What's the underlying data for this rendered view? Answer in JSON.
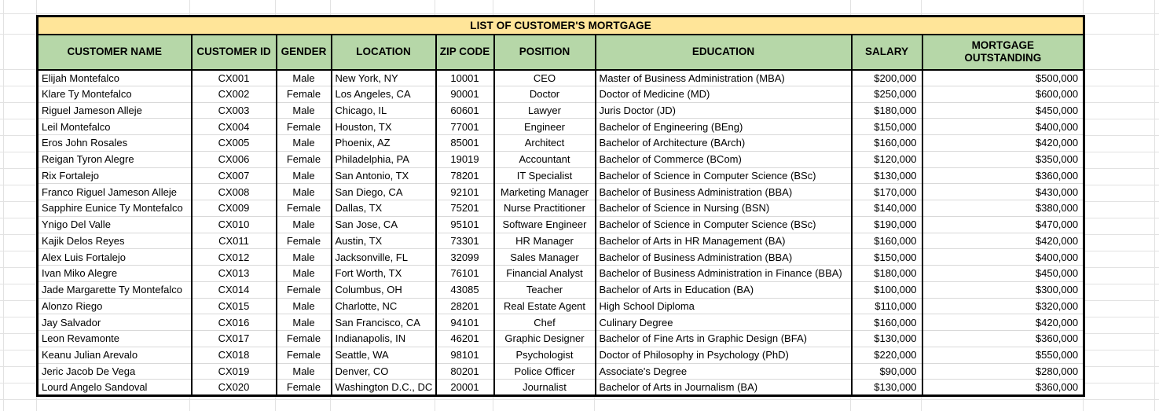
{
  "title": "LIST OF CUSTOMER'S MORTGAGE",
  "colors": {
    "title_bg": "#ffe599",
    "header_bg": "#b6d7a8",
    "table_border": "#000000",
    "gridline": "#e2e2e2",
    "cell_bg": "#ffffff",
    "text": "#000000"
  },
  "columns": [
    {
      "key": "customer_name",
      "label": "CUSTOMER NAME",
      "align": "left"
    },
    {
      "key": "customer_id",
      "label": "CUSTOMER ID",
      "align": "center"
    },
    {
      "key": "gender",
      "label": "GENDER",
      "align": "center"
    },
    {
      "key": "location",
      "label": "LOCATION",
      "align": "left"
    },
    {
      "key": "zip_code",
      "label": "ZIP CODE",
      "align": "center"
    },
    {
      "key": "position",
      "label": "POSITION",
      "align": "center"
    },
    {
      "key": "education",
      "label": "EDUCATION",
      "align": "left"
    },
    {
      "key": "salary",
      "label": "SALARY",
      "align": "right"
    },
    {
      "key": "mortgage_outstanding",
      "label": "MORTGAGE OUTSTANDING",
      "align": "right"
    }
  ],
  "rows": [
    {
      "customer_name": "Elijah Montefalco",
      "customer_id": "CX001",
      "gender": "Male",
      "location": "New York, NY",
      "zip_code": "10001",
      "position": "CEO",
      "education": "Master of Business Administration (MBA)",
      "salary": "$200,000",
      "mortgage_outstanding": "$500,000"
    },
    {
      "customer_name": "Klare Ty Montefalco",
      "customer_id": "CX002",
      "gender": "Female",
      "location": "Los Angeles, CA",
      "zip_code": "90001",
      "position": "Doctor",
      "education": "Doctor of Medicine (MD)",
      "salary": "$250,000",
      "mortgage_outstanding": "$600,000"
    },
    {
      "customer_name": "Riguel Jameson Alleje",
      "customer_id": "CX003",
      "gender": "Male",
      "location": "Chicago, IL",
      "zip_code": "60601",
      "position": "Lawyer",
      "education": "Juris Doctor (JD)",
      "salary": "$180,000",
      "mortgage_outstanding": "$450,000"
    },
    {
      "customer_name": "Leil Montefalco",
      "customer_id": "CX004",
      "gender": "Female",
      "location": "Houston, TX",
      "zip_code": "77001",
      "position": "Engineer",
      "education": "Bachelor of Engineering (BEng)",
      "salary": "$150,000",
      "mortgage_outstanding": "$400,000"
    },
    {
      "customer_name": "Eros John Rosales",
      "customer_id": "CX005",
      "gender": "Male",
      "location": "Phoenix, AZ",
      "zip_code": "85001",
      "position": "Architect",
      "education": "Bachelor of Architecture (BArch)",
      "salary": "$160,000",
      "mortgage_outstanding": "$420,000"
    },
    {
      "customer_name": "Reigan Tyron Alegre",
      "customer_id": "CX006",
      "gender": "Female",
      "location": "Philadelphia, PA",
      "zip_code": "19019",
      "position": "Accountant",
      "education": "Bachelor of Commerce (BCom)",
      "salary": "$120,000",
      "mortgage_outstanding": "$350,000"
    },
    {
      "customer_name": "Rix Fortalejo",
      "customer_id": "CX007",
      "gender": "Male",
      "location": "San Antonio, TX",
      "zip_code": "78201",
      "position": "IT Specialist",
      "education": "Bachelor of Science in Computer Science (BSc)",
      "salary": "$130,000",
      "mortgage_outstanding": "$360,000"
    },
    {
      "customer_name": "Franco Riguel Jameson Alleje",
      "customer_id": "CX008",
      "gender": "Male",
      "location": "San Diego, CA",
      "zip_code": "92101",
      "position": "Marketing Manager",
      "education": "Bachelor of Business Administration (BBA)",
      "salary": "$170,000",
      "mortgage_outstanding": "$430,000"
    },
    {
      "customer_name": "Sapphire Eunice Ty Montefalco",
      "customer_id": "CX009",
      "gender": "Female",
      "location": "Dallas, TX",
      "zip_code": "75201",
      "position": "Nurse Practitioner",
      "education": "Bachelor of Science in Nursing (BSN)",
      "salary": "$140,000",
      "mortgage_outstanding": "$380,000"
    },
    {
      "customer_name": "Ynigo Del Valle",
      "customer_id": "CX010",
      "gender": "Male",
      "location": "San Jose, CA",
      "zip_code": "95101",
      "position": "Software Engineer",
      "education": "Bachelor of Science in Computer Science (BSc)",
      "salary": "$190,000",
      "mortgage_outstanding": "$470,000"
    },
    {
      "customer_name": "Kajik Delos Reyes",
      "customer_id": "CX011",
      "gender": "Female",
      "location": "Austin, TX",
      "zip_code": "73301",
      "position": "HR Manager",
      "education": "Bachelor of Arts in HR Management (BA)",
      "salary": "$160,000",
      "mortgage_outstanding": "$420,000"
    },
    {
      "customer_name": "Alex Luis Fortalejo",
      "customer_id": "CX012",
      "gender": "Male",
      "location": "Jacksonville, FL",
      "zip_code": "32099",
      "position": "Sales Manager",
      "education": "Bachelor of Business Administration (BBA)",
      "salary": "$150,000",
      "mortgage_outstanding": "$400,000"
    },
    {
      "customer_name": "Ivan Miko Alegre",
      "customer_id": "CX013",
      "gender": "Male",
      "location": "Fort Worth, TX",
      "zip_code": "76101",
      "position": "Financial Analyst",
      "education": "Bachelor of Business Administration in Finance (BBA)",
      "salary": "$180,000",
      "mortgage_outstanding": "$450,000"
    },
    {
      "customer_name": "Jade Margarette Ty Montefalco",
      "customer_id": "CX014",
      "gender": "Female",
      "location": "Columbus, OH",
      "zip_code": "43085",
      "position": "Teacher",
      "education": "Bachelor of Arts in Education (BA)",
      "salary": "$100,000",
      "mortgage_outstanding": "$300,000"
    },
    {
      "customer_name": "Alonzo Riego",
      "customer_id": "CX015",
      "gender": "Male",
      "location": "Charlotte, NC",
      "zip_code": "28201",
      "position": "Real Estate Agent",
      "education": "High School Diploma",
      "salary": "$110,000",
      "mortgage_outstanding": "$320,000"
    },
    {
      "customer_name": "Jay Salvador",
      "customer_id": "CX016",
      "gender": "Male",
      "location": "San Francisco, CA",
      "zip_code": "94101",
      "position": "Chef",
      "education": "Culinary Degree",
      "salary": "$160,000",
      "mortgage_outstanding": "$420,000"
    },
    {
      "customer_name": "Leon Revamonte",
      "customer_id": "CX017",
      "gender": "Female",
      "location": "Indianapolis, IN",
      "zip_code": "46201",
      "position": "Graphic Designer",
      "education": "Bachelor of Fine Arts in Graphic Design (BFA)",
      "salary": "$130,000",
      "mortgage_outstanding": "$360,000"
    },
    {
      "customer_name": "Keanu Julian Arevalo",
      "customer_id": "CX018",
      "gender": "Female",
      "location": "Seattle, WA",
      "zip_code": "98101",
      "position": "Psychologist",
      "education": "Doctor of Philosophy in Psychology (PhD)",
      "salary": "$220,000",
      "mortgage_outstanding": "$550,000"
    },
    {
      "customer_name": "Jeric Jacob De Vega",
      "customer_id": "CX019",
      "gender": "Male",
      "location": "Denver, CO",
      "zip_code": "80201",
      "position": "Police Officer",
      "education": "Associate's Degree",
      "salary": "$90,000",
      "mortgage_outstanding": "$280,000"
    },
    {
      "customer_name": "Lourd Angelo Sandoval",
      "customer_id": "CX020",
      "gender": "Female",
      "location": "Washington D.C., DC",
      "zip_code": "20001",
      "position": "Journalist",
      "education": "Bachelor of Arts in Journalism (BA)",
      "salary": "$130,000",
      "mortgage_outstanding": "$360,000"
    }
  ]
}
